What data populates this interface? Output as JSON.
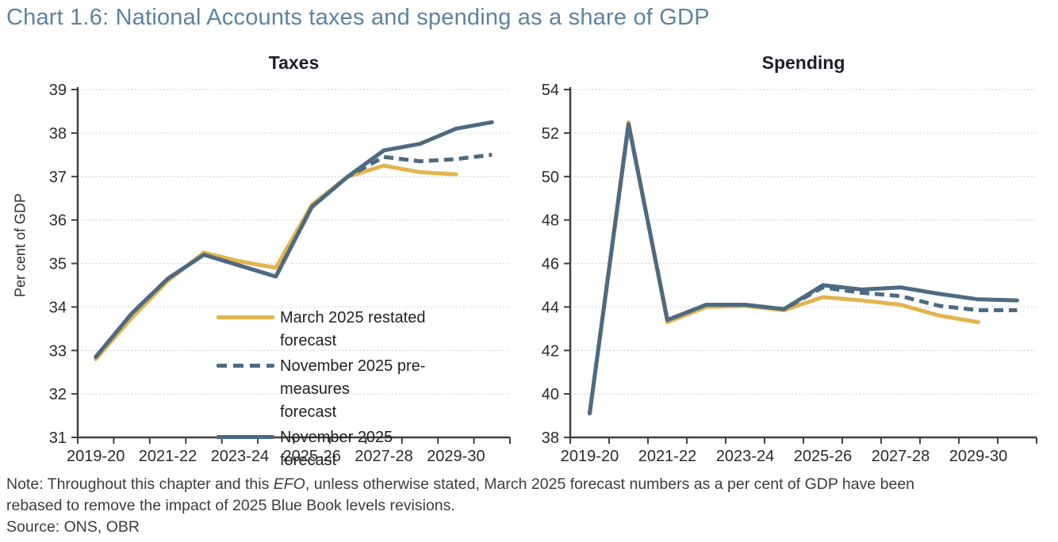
{
  "page_title": "Chart 1.6: National Accounts taxes and spending as a share of GDP",
  "colors": {
    "title_blue": "#5E82A3",
    "slate_line": "#4E6A82",
    "gold_line": "#E2B44C",
    "axis": "#404040",
    "gridline": "#D8D8D8"
  },
  "note": {
    "line1_prefix": "Note: Throughout this chapter and this ",
    "line1_italic": "EFO",
    "line1_suffix": ", unless otherwise stated, March 2025 forecast numbers as a per cent of GDP have been",
    "line2": "rebased to remove the impact of 2025 Blue Book levels revisions.",
    "source": "Source: ONS, OBR"
  },
  "chart_data": [
    {
      "type": "line",
      "title": "Taxes",
      "ylabel": "Per cent of GDP",
      "ylim": [
        31,
        39
      ],
      "yticks": [
        31,
        32,
        33,
        34,
        35,
        36,
        37,
        38,
        39
      ],
      "grid": "horizontal-dotted",
      "legend_position": "inside-lower-right",
      "categories": [
        "2019-20",
        "2020-21",
        "2021-22",
        "2022-23",
        "2023-24",
        "2024-25",
        "2025-26",
        "2026-27",
        "2027-28",
        "2028-29",
        "2029-30",
        "2030-31"
      ],
      "xtick_labels": [
        "2019-20",
        "2021-22",
        "2023-24",
        "2025-26",
        "2027-28",
        "2029-30"
      ],
      "xtick_positions": [
        0,
        2,
        4,
        6,
        8,
        10
      ],
      "series": [
        {
          "name": "March 2025 restated forecast",
          "legend_lines": [
            "March 2025 restated",
            "forecast"
          ],
          "color": "#E2B44C",
          "dash": false,
          "values": [
            32.8,
            33.75,
            34.6,
            35.25,
            35.05,
            34.9,
            36.35,
            37.0,
            37.25,
            37.1,
            37.05,
            null
          ]
        },
        {
          "name": "November 2025 pre-measures forecast",
          "legend_lines": [
            "November 2025 pre-measures",
            "forecast"
          ],
          "color": "#4E6A82",
          "dash": true,
          "values": [
            32.85,
            33.85,
            34.65,
            35.2,
            34.95,
            34.7,
            36.3,
            37.0,
            37.45,
            37.35,
            37.4,
            37.5
          ]
        },
        {
          "name": "November 2025 forecast",
          "legend_lines": [
            "November 2025",
            "forecast"
          ],
          "color": "#4E6A82",
          "dash": false,
          "values": [
            32.85,
            33.85,
            34.65,
            35.2,
            34.95,
            34.7,
            36.3,
            37.0,
            37.6,
            37.75,
            38.1,
            38.25
          ]
        }
      ]
    },
    {
      "type": "line",
      "title": "Spending",
      "ylabel": "",
      "ylim": [
        38,
        54
      ],
      "yticks": [
        38,
        40,
        42,
        44,
        46,
        48,
        50,
        52,
        54
      ],
      "grid": "horizontal-dotted",
      "legend_position": "none",
      "categories": [
        "2019-20",
        "2020-21",
        "2021-22",
        "2022-23",
        "2023-24",
        "2024-25",
        "2025-26",
        "2026-27",
        "2027-28",
        "2028-29",
        "2029-30",
        "2030-31"
      ],
      "xtick_labels": [
        "2019-20",
        "2021-22",
        "2023-24",
        "2025-26",
        "2027-28",
        "2029-30"
      ],
      "xtick_positions": [
        0,
        2,
        4,
        6,
        8,
        10
      ],
      "series": [
        {
          "name": "March 2025 restated forecast",
          "color": "#E2B44C",
          "dash": false,
          "values": [
            39.1,
            52.5,
            43.3,
            44.0,
            44.05,
            43.85,
            44.45,
            44.3,
            44.1,
            43.6,
            43.3,
            null
          ]
        },
        {
          "name": "November 2025 pre-measures forecast",
          "color": "#4E6A82",
          "dash": true,
          "values": [
            39.1,
            52.4,
            43.4,
            44.1,
            44.1,
            43.9,
            44.9,
            44.65,
            44.5,
            44.05,
            43.85,
            43.85
          ]
        },
        {
          "name": "November 2025 forecast",
          "color": "#4E6A82",
          "dash": false,
          "values": [
            39.1,
            52.4,
            43.4,
            44.1,
            44.1,
            43.9,
            45.0,
            44.8,
            44.9,
            44.6,
            44.35,
            44.3
          ]
        }
      ]
    }
  ]
}
